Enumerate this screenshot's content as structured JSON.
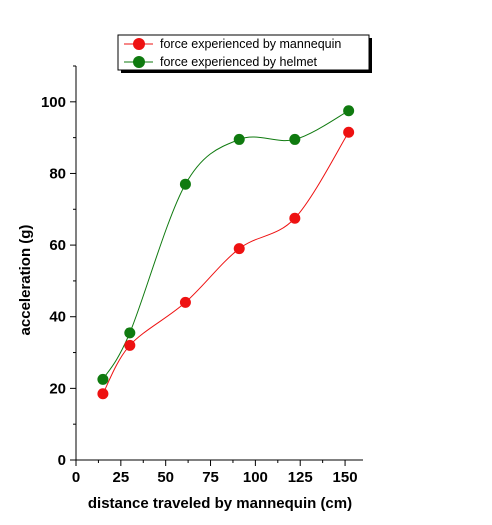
{
  "chart_data": {
    "type": "scatter",
    "xlabel": "distance traveled by mannequin (cm)",
    "ylabel": "acceleration (g)",
    "xlim": [
      0,
      160
    ],
    "ylim": [
      0,
      110
    ],
    "xticks": [
      0,
      25,
      50,
      75,
      100,
      125,
      150
    ],
    "yticks": [
      0,
      20,
      40,
      60,
      80,
      100
    ],
    "legend_position": "top",
    "grid": false,
    "series": [
      {
        "name": "force experienced by mannequin",
        "color": "#ee1111",
        "x": [
          15,
          30,
          61,
          91,
          122,
          152
        ],
        "y": [
          18.5,
          32,
          44,
          59,
          67.5,
          91.5
        ]
      },
      {
        "name": "force experienced by helmet",
        "color": "#0f7a0f",
        "x": [
          15,
          30,
          61,
          91,
          122,
          152
        ],
        "y": [
          22.5,
          35.5,
          77,
          89.5,
          89.5,
          97.5
        ]
      }
    ]
  }
}
